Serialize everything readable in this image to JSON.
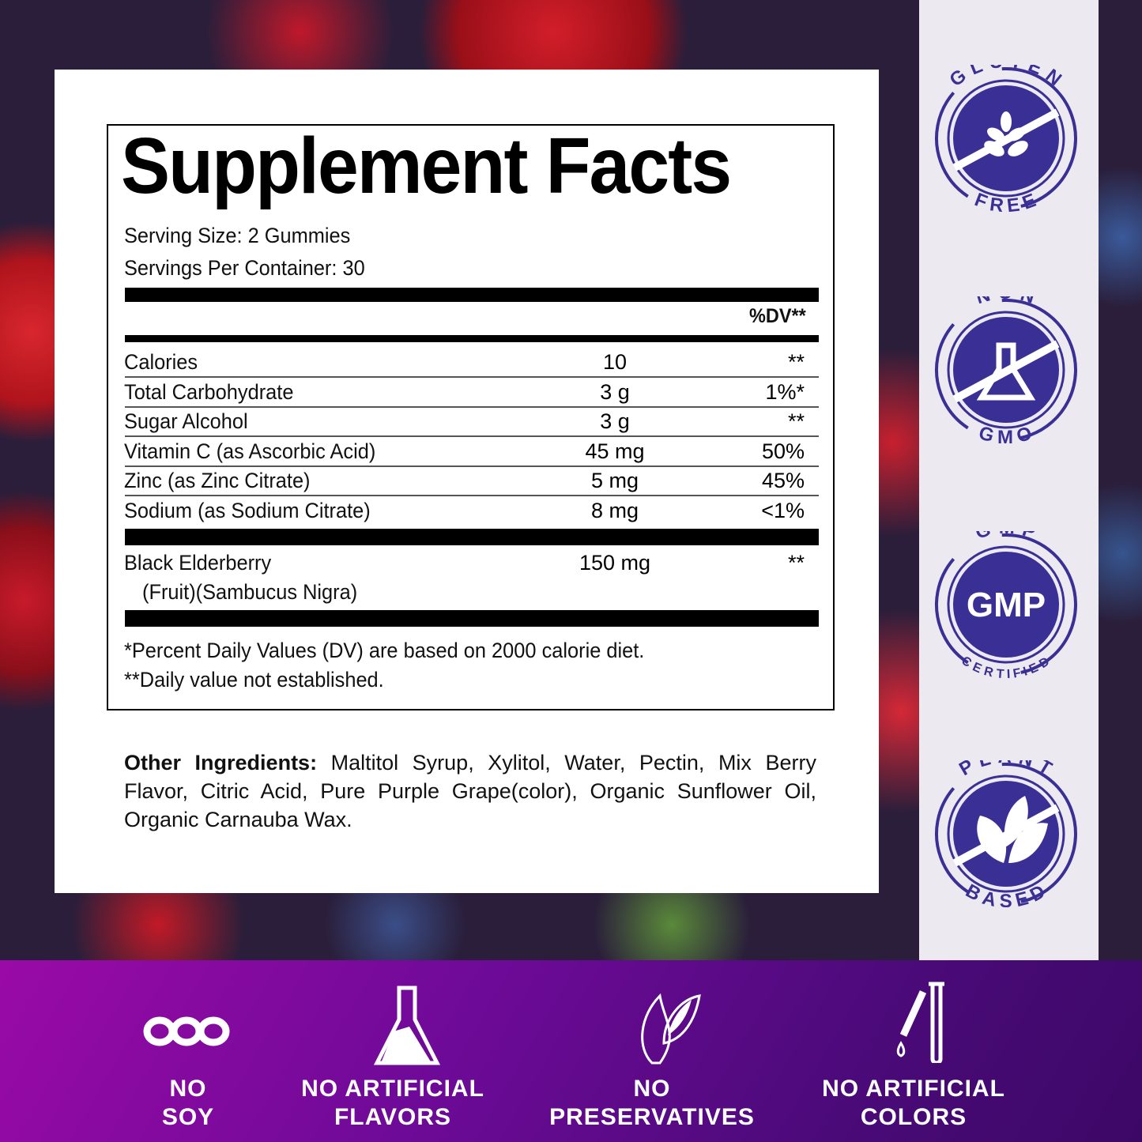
{
  "facts": {
    "title": "Supplement Facts",
    "serving_size": "Serving Size: 2 Gummies",
    "servings": "Servings Per Container: 30",
    "dv_header": "%DV**",
    "rows": [
      {
        "name": "Calories",
        "amount": "10",
        "dv": "**"
      },
      {
        "name": "Total Carbohydrate",
        "amount": "3 g",
        "dv": "1%*"
      },
      {
        "name": "Sugar Alcohol",
        "amount": "3 g",
        "dv": "**"
      },
      {
        "name": "Vitamin C (as Ascorbic Acid)",
        "amount": "45 mg",
        "dv": "50%"
      },
      {
        "name": "Zinc (as Zinc Citrate)",
        "amount": "5 mg",
        "dv": "45%"
      },
      {
        "name": "Sodium (as Sodium Citrate)",
        "amount": "8 mg",
        "dv": "<1%"
      }
    ],
    "elderberry": {
      "name": "Black Elderberry",
      "name2": "(Fruit)(Sambucus Nigra)",
      "amount": "150 mg",
      "dv": "**"
    },
    "footnote1": "*Percent Daily Values (DV) are based on 2000 calorie diet.",
    "footnote2": "**Daily value not established."
  },
  "other": {
    "label": "Other Ingredients:",
    "text": " Maltitol Syrup, Xylitol, Water, Pectin, Mix Berry Flavor, Citric Acid, Pure Purple Grape(color), Organic Sunflower Oil, Organic Carnauba Wax."
  },
  "badges": [
    {
      "top": "GLUTEN",
      "bottom": "FREE",
      "icon": "wheat-icon"
    },
    {
      "top": "NON",
      "bottom": "GMO",
      "icon": "flask-icon"
    },
    {
      "top": "GMP",
      "bottom": "CERTIFIED",
      "center": "GMP"
    },
    {
      "top": "PLANT",
      "bottom": "BASED",
      "icon": "leaves-icon"
    }
  ],
  "features": [
    {
      "l1": "NO",
      "l2": "SOY",
      "icon": "soy-icon"
    },
    {
      "l1": "NO ARTIFICIAL",
      "l2": "FLAVORS",
      "icon": "flask-icon"
    },
    {
      "l1": "NO",
      "l2": "PRESERVATIVES",
      "icon": "leaf-icon"
    },
    {
      "l1": "NO ARTIFICIAL",
      "l2": "COLORS",
      "icon": "dropper-icon"
    }
  ],
  "colors": {
    "badge": "#3a2f95",
    "panel": "#eceaf0",
    "band_start": "#9a0aa6",
    "band_end": "#3c0866"
  }
}
